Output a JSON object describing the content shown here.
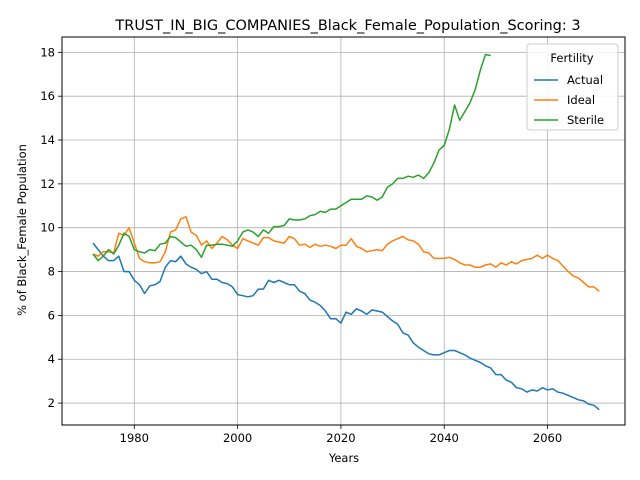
{
  "chart_data": {
    "type": "line",
    "title": "TRUST_IN_BIG_COMPANIES_Black_Female_Population_Scoring: 3",
    "xlabel": "Years",
    "ylabel": "% of Black_Female Population",
    "xlim": [
      1966,
      2075
    ],
    "ylim": [
      1.0,
      18.7
    ],
    "xticks": [
      1980,
      2000,
      2020,
      2040,
      2060
    ],
    "yticks": [
      2,
      4,
      6,
      8,
      10,
      12,
      14,
      16,
      18
    ],
    "grid": true,
    "legend": {
      "title": "Fertility",
      "placement": "top-right"
    },
    "series": [
      {
        "name": "Actual",
        "color": "#1f77b4",
        "x": [
          1972,
          1973,
          1974,
          1975,
          1976,
          1977,
          1978,
          1979,
          1980,
          1981,
          1982,
          1983,
          1984,
          1985,
          1986,
          1987,
          1988,
          1989,
          1990,
          1991,
          1992,
          1993,
          1994,
          1995,
          1996,
          1997,
          1998,
          1999,
          2000,
          2001,
          2002,
          2003,
          2004,
          2005,
          2006,
          2007,
          2008,
          2009,
          2010,
          2011,
          2012,
          2013,
          2014,
          2015,
          2016,
          2017,
          2018,
          2019,
          2020,
          2021,
          2022,
          2023,
          2024,
          2025,
          2026,
          2027,
          2028,
          2029,
          2030,
          2031,
          2032,
          2033,
          2034,
          2035,
          2036,
          2037,
          2038,
          2039,
          2040,
          2041,
          2042,
          2043,
          2044,
          2045,
          2046,
          2047,
          2048,
          2049,
          2050,
          2051,
          2052,
          2053,
          2054,
          2055,
          2056,
          2057,
          2058,
          2059,
          2060,
          2061,
          2062,
          2063,
          2064,
          2065,
          2066,
          2067,
          2068,
          2069,
          2070
        ],
        "values": [
          9.3,
          9.0,
          8.7,
          8.5,
          8.5,
          8.7,
          8.0,
          8.0,
          7.6,
          7.4,
          7.0,
          7.35,
          7.4,
          7.55,
          8.2,
          8.5,
          8.45,
          8.7,
          8.35,
          8.2,
          8.1,
          7.9,
          8.0,
          7.65,
          7.65,
          7.5,
          7.45,
          7.3,
          6.95,
          6.9,
          6.85,
          6.9,
          7.2,
          7.2,
          7.6,
          7.5,
          7.6,
          7.5,
          7.4,
          7.4,
          7.1,
          7.0,
          6.7,
          6.6,
          6.45,
          6.2,
          5.85,
          5.85,
          5.65,
          6.15,
          6.05,
          6.3,
          6.2,
          6.05,
          6.25,
          6.2,
          6.15,
          5.95,
          5.75,
          5.6,
          5.2,
          5.1,
          4.75,
          4.55,
          4.4,
          4.25,
          4.2,
          4.2,
          4.3,
          4.4,
          4.4,
          4.3,
          4.2,
          4.05,
          3.95,
          3.85,
          3.7,
          3.6,
          3.3,
          3.3,
          3.05,
          2.95,
          2.7,
          2.65,
          2.5,
          2.6,
          2.55,
          2.7,
          2.6,
          2.65,
          2.5,
          2.45,
          2.35,
          2.25,
          2.15,
          2.1,
          1.95,
          1.9,
          1.7
        ]
      },
      {
        "name": "Ideal",
        "color": "#ff7f0e",
        "x": [
          1972,
          1973,
          1974,
          1975,
          1976,
          1977,
          1978,
          1979,
          1980,
          1981,
          1982,
          1983,
          1984,
          1985,
          1986,
          1987,
          1988,
          1989,
          1990,
          1991,
          1992,
          1993,
          1994,
          1995,
          1996,
          1997,
          1998,
          1999,
          2000,
          2001,
          2002,
          2003,
          2004,
          2005,
          2006,
          2007,
          2008,
          2009,
          2010,
          2011,
          2012,
          2013,
          2014,
          2015,
          2016,
          2017,
          2018,
          2019,
          2020,
          2021,
          2022,
          2023,
          2024,
          2025,
          2026,
          2027,
          2028,
          2029,
          2030,
          2031,
          2032,
          2033,
          2034,
          2035,
          2036,
          2037,
          2038,
          2039,
          2040,
          2041,
          2042,
          2043,
          2044,
          2045,
          2046,
          2047,
          2048,
          2049,
          2050,
          2051,
          2052,
          2053,
          2054,
          2055,
          2056,
          2057,
          2058,
          2059,
          2060,
          2061,
          2062,
          2063,
          2064,
          2065,
          2066,
          2067,
          2068,
          2069,
          2070
        ],
        "values": [
          8.8,
          8.7,
          8.9,
          8.9,
          8.85,
          9.75,
          9.65,
          10.0,
          9.3,
          8.6,
          8.45,
          8.4,
          8.4,
          8.45,
          8.9,
          9.8,
          9.9,
          10.4,
          10.5,
          9.8,
          9.65,
          9.2,
          9.4,
          9.05,
          9.3,
          9.6,
          9.45,
          9.2,
          9.05,
          9.5,
          9.4,
          9.3,
          9.2,
          9.55,
          9.55,
          9.4,
          9.35,
          9.3,
          9.6,
          9.5,
          9.2,
          9.25,
          9.1,
          9.25,
          9.15,
          9.2,
          9.15,
          9.05,
          9.2,
          9.2,
          9.5,
          9.15,
          9.05,
          8.9,
          8.95,
          9.0,
          8.95,
          9.25,
          9.4,
          9.5,
          9.6,
          9.45,
          9.4,
          9.25,
          8.9,
          8.85,
          8.6,
          8.6,
          8.6,
          8.65,
          8.55,
          8.4,
          8.3,
          8.3,
          8.2,
          8.2,
          8.3,
          8.35,
          8.2,
          8.4,
          8.3,
          8.45,
          8.35,
          8.5,
          8.55,
          8.6,
          8.75,
          8.6,
          8.75,
          8.6,
          8.5,
          8.25,
          8.0,
          7.8,
          7.7,
          7.5,
          7.3,
          7.3,
          7.1
        ]
      },
      {
        "name": "Sterile",
        "color": "#2ca02c",
        "x": [
          1972,
          1973,
          1974,
          1975,
          1976,
          1977,
          1978,
          1979,
          1980,
          1981,
          1982,
          1983,
          1984,
          1985,
          1986,
          1987,
          1988,
          1989,
          1990,
          1991,
          1992,
          1993,
          1994,
          1995,
          1996,
          1997,
          1998,
          1999,
          2000,
          2001,
          2002,
          2003,
          2004,
          2005,
          2006,
          2007,
          2008,
          2009,
          2010,
          2011,
          2012,
          2013,
          2014,
          2015,
          2016,
          2017,
          2018,
          2019,
          2020,
          2021,
          2022,
          2023,
          2024,
          2025,
          2026,
          2027,
          2028,
          2029,
          2030,
          2031,
          2032,
          2033,
          2034,
          2035,
          2036,
          2037,
          2038,
          2039,
          2040,
          2041,
          2042,
          2043,
          2044,
          2045,
          2046,
          2047,
          2048,
          2049
        ],
        "values": [
          8.8,
          8.5,
          8.7,
          9.0,
          8.8,
          9.2,
          9.75,
          9.6,
          9.0,
          8.9,
          8.85,
          9.0,
          8.95,
          9.25,
          9.3,
          9.6,
          9.55,
          9.35,
          9.15,
          9.2,
          9.0,
          8.65,
          9.2,
          9.2,
          9.25,
          9.25,
          9.2,
          9.15,
          9.4,
          9.8,
          9.9,
          9.8,
          9.6,
          9.9,
          9.75,
          10.05,
          10.05,
          10.1,
          10.4,
          10.35,
          10.35,
          10.4,
          10.55,
          10.6,
          10.75,
          10.7,
          10.85,
          10.85,
          11.0,
          11.15,
          11.3,
          11.3,
          11.3,
          11.45,
          11.4,
          11.25,
          11.4,
          11.85,
          12.0,
          12.25,
          12.25,
          12.35,
          12.3,
          12.4,
          12.25,
          12.5,
          12.95,
          13.55,
          13.75,
          14.5,
          15.6,
          14.9,
          15.3,
          15.7,
          16.3,
          17.2,
          17.9,
          17.85
        ]
      }
    ]
  }
}
